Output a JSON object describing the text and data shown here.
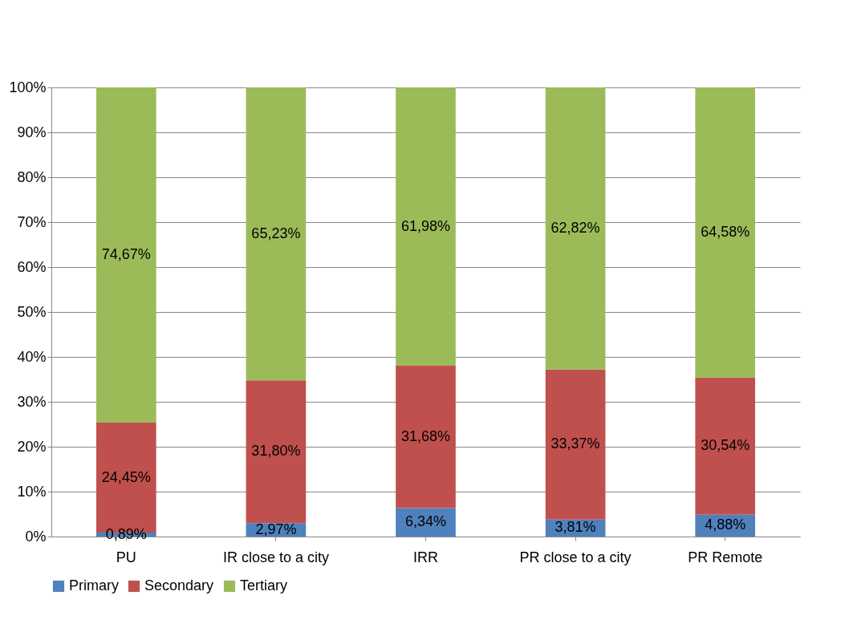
{
  "chart_data": {
    "type": "bar",
    "stacked": true,
    "categories": [
      "PU",
      "IR close to a city",
      "IRR",
      "PR close to a city",
      "PR Remote"
    ],
    "series": [
      {
        "name": "Primary",
        "color": "#4f81bd",
        "values": [
          0.89,
          2.97,
          6.34,
          3.81,
          4.88
        ],
        "value_labels": [
          "0,89%",
          "2,97%",
          "6,34%",
          "3,81%",
          "4,88%"
        ]
      },
      {
        "name": "Secondary",
        "color": "#c0504d",
        "values": [
          24.45,
          31.8,
          31.68,
          33.37,
          30.54
        ],
        "value_labels": [
          "24,45%",
          "31,80%",
          "31,68%",
          "33,37%",
          "30,54%"
        ]
      },
      {
        "name": "Tertiary",
        "color": "#9bbb59",
        "values": [
          74.67,
          65.23,
          61.98,
          62.82,
          64.58
        ],
        "value_labels": [
          "74,67%",
          "65,23%",
          "61,98%",
          "62,82%",
          "64,58%"
        ]
      }
    ],
    "ylim": [
      0,
      100
    ],
    "yticks": [
      {
        "value": 0,
        "label": "0%"
      },
      {
        "value": 10,
        "label": "10%"
      },
      {
        "value": 20,
        "label": "20%"
      },
      {
        "value": 30,
        "label": "30%"
      },
      {
        "value": 40,
        "label": "40%"
      },
      {
        "value": 50,
        "label": "50%"
      },
      {
        "value": 60,
        "label": "60%"
      },
      {
        "value": 70,
        "label": "70%"
      },
      {
        "value": 80,
        "label": "80%"
      },
      {
        "value": 90,
        "label": "90%"
      },
      {
        "value": 100,
        "label": "100%"
      }
    ],
    "grid": "y",
    "legend": "bottom"
  }
}
